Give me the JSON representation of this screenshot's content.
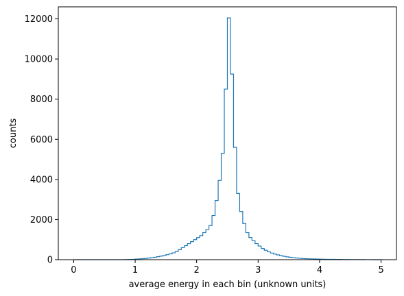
{
  "chart_data": {
    "type": "histogram",
    "title": "",
    "xlabel": "average energy in each bin (unknown units)",
    "ylabel": "counts",
    "xlim": [
      -0.25,
      5.25
    ],
    "ylim": [
      0,
      12600
    ],
    "x_ticks": [
      0,
      1,
      2,
      3,
      4,
      5
    ],
    "y_ticks": [
      0,
      2000,
      4000,
      6000,
      8000,
      10000,
      12000
    ],
    "grid": false,
    "legend": "none",
    "series": [
      {
        "style": "step",
        "color": "#1f77b4",
        "bin_edges": [
          0,
          0.05,
          0.1,
          0.15,
          0.2,
          0.25,
          0.3,
          0.35,
          0.4,
          0.45,
          0.5,
          0.55,
          0.6,
          0.65,
          0.7,
          0.75,
          0.8,
          0.85,
          0.9,
          0.95,
          1,
          1.05,
          1.1,
          1.15,
          1.2,
          1.25,
          1.3,
          1.35,
          1.4,
          1.45,
          1.5,
          1.55,
          1.6,
          1.65,
          1.7,
          1.75,
          1.8,
          1.85,
          1.9,
          1.95,
          2,
          2.05,
          2.1,
          2.15,
          2.2,
          2.25,
          2.3,
          2.35,
          2.4,
          2.45,
          2.5,
          2.55,
          2.6,
          2.65,
          2.7,
          2.75,
          2.8,
          2.85,
          2.9,
          2.95,
          3,
          3.05,
          3.1,
          3.15,
          3.2,
          3.25,
          3.3,
          3.35,
          3.4,
          3.45,
          3.5,
          3.55,
          3.6,
          3.65,
          3.7,
          3.75,
          3.8,
          3.85,
          3.9,
          3.95,
          4,
          4.05,
          4.1,
          4.15,
          4.2,
          4.25,
          4.3,
          4.35,
          4.4,
          4.45,
          4.5,
          4.55,
          4.6,
          4.65,
          4.7,
          4.75,
          4.8,
          4.85,
          4.9,
          4.95,
          5
        ],
        "counts": [
          0,
          0,
          0,
          0,
          0,
          0,
          0,
          0,
          0,
          0,
          0,
          0,
          0,
          0,
          0,
          0,
          5,
          10,
          15,
          20,
          30,
          40,
          50,
          60,
          80,
          100,
          120,
          150,
          180,
          210,
          250,
          290,
          340,
          400,
          500,
          600,
          700,
          800,
          900,
          1000,
          1100,
          1200,
          1350,
          1500,
          1700,
          2200,
          2950,
          3950,
          5300,
          8500,
          12050,
          9250,
          5600,
          3300,
          2400,
          1800,
          1350,
          1100,
          950,
          800,
          680,
          560,
          470,
          390,
          330,
          280,
          240,
          200,
          170,
          140,
          120,
          100,
          85,
          70,
          60,
          50,
          45,
          40,
          35,
          30,
          25,
          22,
          20,
          18,
          16,
          14,
          12,
          10,
          9,
          8,
          7,
          6,
          5,
          4,
          3,
          2,
          2,
          1,
          1,
          1
        ]
      }
    ]
  }
}
